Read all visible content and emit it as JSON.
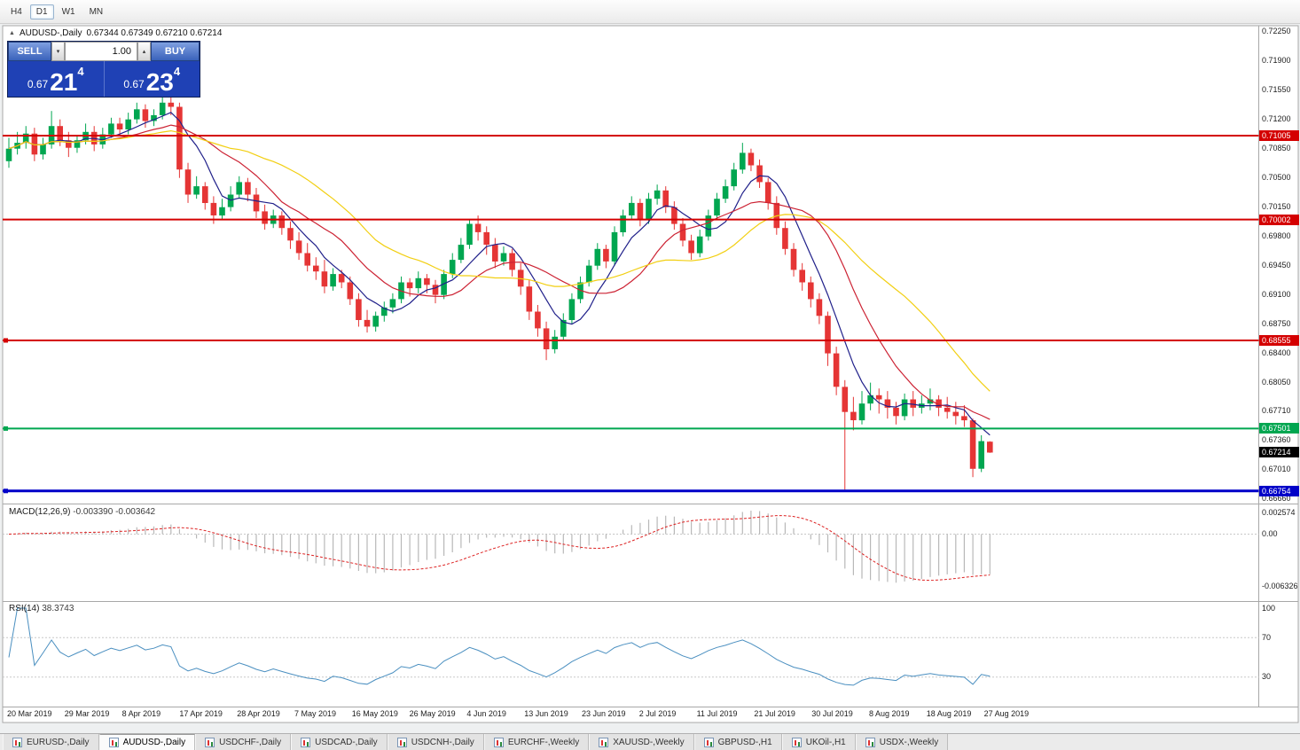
{
  "toolbar": {
    "timeframes": [
      {
        "label": "H4",
        "active": false
      },
      {
        "label": "D1",
        "active": true
      },
      {
        "label": "W1",
        "active": false
      },
      {
        "label": "MN",
        "active": false
      }
    ]
  },
  "legend": {
    "symbol": "AUDUSD-,Daily",
    "ohlc": "0.67344 0.67349 0.67210 0.67214"
  },
  "trade_widget": {
    "sell_button": "SELL",
    "buy_button": "BUY",
    "volume": "1.00",
    "bid": {
      "prefix": "0.67",
      "big": "21",
      "sup": "4"
    },
    "ask": {
      "prefix": "0.67",
      "big": "23",
      "sup": "4"
    }
  },
  "tabs": [
    {
      "label": "EURUSD-,Daily",
      "active": false
    },
    {
      "label": "AUDUSD-,Daily",
      "active": true
    },
    {
      "label": "USDCHF-,Daily",
      "active": false
    },
    {
      "label": "USDCAD-,Daily",
      "active": false
    },
    {
      "label": "USDCNH-,Daily",
      "active": false
    },
    {
      "label": "EURCHF-,Weekly",
      "active": false
    },
    {
      "label": "XAUUSD-,Weekly",
      "active": false
    },
    {
      "label": "GBPUSD-,H1",
      "active": false
    },
    {
      "label": "UKOil-,H1",
      "active": false
    },
    {
      "label": "USDX-,Weekly",
      "active": false
    }
  ],
  "chart_data": {
    "type": "candlestick",
    "symbol": "AUDUSD",
    "period": "Daily",
    "bull_color": "#00a650",
    "bear_color": "#e53535",
    "y_range": [
      0.66625,
      0.7231
    ],
    "y_axis_ticks": [
      "0.72250",
      "0.71900",
      "0.71550",
      "0.71200",
      "0.70850",
      "0.70500",
      "0.70150",
      "0.69800",
      "0.69450",
      "0.69100",
      "0.68750",
      "0.68400",
      "0.68050",
      "0.67710",
      "0.67360",
      "0.67010",
      "0.66660"
    ],
    "x_axis_labels": [
      "20 Mar 2019",
      "29 Mar 2019",
      "8 Apr 2019",
      "17 Apr 2019",
      "28 Apr 2019",
      "7 May 2019",
      "16 May 2019",
      "26 May 2019",
      "4 Jun 2019",
      "13 Jun 2019",
      "23 Jun 2019",
      "2 Jul 2019",
      "11 Jul 2019",
      "21 Jul 2019",
      "30 Jul 2019",
      "8 Aug 2019",
      "18 Aug 2019",
      "27 Aug 2019"
    ],
    "ohlc": [
      [
        0.707,
        0.7098,
        0.7062,
        0.7085
      ],
      [
        0.7085,
        0.7105,
        0.7078,
        0.7092
      ],
      [
        0.7092,
        0.7112,
        0.7085,
        0.7103
      ],
      [
        0.7103,
        0.711,
        0.707,
        0.7078
      ],
      [
        0.7078,
        0.7098,
        0.7072,
        0.709
      ],
      [
        0.709,
        0.713,
        0.7085,
        0.7112
      ],
      [
        0.7112,
        0.712,
        0.7088,
        0.7095
      ],
      [
        0.7095,
        0.7105,
        0.7075,
        0.7086
      ],
      [
        0.7086,
        0.71,
        0.708,
        0.7095
      ],
      [
        0.7095,
        0.7115,
        0.709,
        0.7105
      ],
      [
        0.7105,
        0.7112,
        0.7082,
        0.709
      ],
      [
        0.709,
        0.711,
        0.7085,
        0.7102
      ],
      [
        0.7102,
        0.7122,
        0.7098,
        0.7115
      ],
      [
        0.7115,
        0.7122,
        0.71,
        0.7108
      ],
      [
        0.7108,
        0.7128,
        0.7102,
        0.712
      ],
      [
        0.712,
        0.714,
        0.7115,
        0.7132
      ],
      [
        0.7132,
        0.7138,
        0.711,
        0.7118
      ],
      [
        0.7118,
        0.7132,
        0.7112,
        0.7125
      ],
      [
        0.7125,
        0.7152,
        0.712,
        0.714
      ],
      [
        0.714,
        0.7148,
        0.7125,
        0.7135
      ],
      [
        0.7135,
        0.714,
        0.705,
        0.706
      ],
      [
        0.706,
        0.7068,
        0.702,
        0.703
      ],
      [
        0.703,
        0.7052,
        0.7025,
        0.704
      ],
      [
        0.704,
        0.7045,
        0.7012,
        0.702
      ],
      [
        0.702,
        0.7028,
        0.6995,
        0.7005
      ],
      [
        0.7005,
        0.7025,
        0.7,
        0.7015
      ],
      [
        0.7015,
        0.704,
        0.701,
        0.703
      ],
      [
        0.703,
        0.7052,
        0.7025,
        0.7045
      ],
      [
        0.7045,
        0.705,
        0.7022,
        0.703
      ],
      [
        0.703,
        0.7038,
        0.7002,
        0.701
      ],
      [
        0.701,
        0.7018,
        0.6988,
        0.6995
      ],
      [
        0.6995,
        0.7012,
        0.699,
        0.7005
      ],
      [
        0.7005,
        0.701,
        0.6982,
        0.699
      ],
      [
        0.699,
        0.6998,
        0.6965,
        0.6975
      ],
      [
        0.6975,
        0.6985,
        0.6952,
        0.696
      ],
      [
        0.696,
        0.6972,
        0.6938,
        0.6945
      ],
      [
        0.6945,
        0.6955,
        0.6928,
        0.6938
      ],
      [
        0.6938,
        0.6952,
        0.6912,
        0.692
      ],
      [
        0.692,
        0.6942,
        0.6915,
        0.6935
      ],
      [
        0.6935,
        0.694,
        0.6918,
        0.6925
      ],
      [
        0.6925,
        0.6932,
        0.6898,
        0.6905
      ],
      [
        0.6905,
        0.6912,
        0.6872,
        0.688
      ],
      [
        0.688,
        0.6892,
        0.6865,
        0.6872
      ],
      [
        0.6872,
        0.689,
        0.6866,
        0.6885
      ],
      [
        0.6885,
        0.6902,
        0.6878,
        0.6895
      ],
      [
        0.6895,
        0.6912,
        0.6888,
        0.6905
      ],
      [
        0.6905,
        0.6932,
        0.69,
        0.6925
      ],
      [
        0.6925,
        0.693,
        0.6908,
        0.6918
      ],
      [
        0.6918,
        0.6938,
        0.6912,
        0.693
      ],
      [
        0.693,
        0.6935,
        0.6912,
        0.6922
      ],
      [
        0.6922,
        0.6928,
        0.69,
        0.691
      ],
      [
        0.691,
        0.694,
        0.6905,
        0.6935
      ],
      [
        0.6935,
        0.696,
        0.693,
        0.6952
      ],
      [
        0.6952,
        0.6978,
        0.6948,
        0.697
      ],
      [
        0.697,
        0.7,
        0.6965,
        0.6995
      ],
      [
        0.6995,
        0.7005,
        0.6975,
        0.6985
      ],
      [
        0.6985,
        0.6992,
        0.6958,
        0.697
      ],
      [
        0.697,
        0.6978,
        0.6942,
        0.695
      ],
      [
        0.695,
        0.6968,
        0.6945,
        0.696
      ],
      [
        0.696,
        0.6965,
        0.6932,
        0.694
      ],
      [
        0.694,
        0.6948,
        0.691,
        0.692
      ],
      [
        0.692,
        0.6928,
        0.688,
        0.689
      ],
      [
        0.689,
        0.6898,
        0.686,
        0.687
      ],
      [
        0.687,
        0.6878,
        0.6832,
        0.6845
      ],
      [
        0.6845,
        0.6868,
        0.684,
        0.686
      ],
      [
        0.686,
        0.6888,
        0.6855,
        0.688
      ],
      [
        0.688,
        0.6912,
        0.6875,
        0.6905
      ],
      [
        0.6905,
        0.6932,
        0.69,
        0.6925
      ],
      [
        0.6925,
        0.6952,
        0.692,
        0.6945
      ],
      [
        0.6945,
        0.6972,
        0.694,
        0.6965
      ],
      [
        0.6965,
        0.697,
        0.6942,
        0.695
      ],
      [
        0.695,
        0.6992,
        0.6945,
        0.6985
      ],
      [
        0.6985,
        0.7012,
        0.698,
        0.7005
      ],
      [
        0.7005,
        0.7028,
        0.7,
        0.702
      ],
      [
        0.702,
        0.7025,
        0.6992,
        0.7
      ],
      [
        0.7,
        0.7032,
        0.6995,
        0.7025
      ],
      [
        0.7025,
        0.7042,
        0.7018,
        0.7035
      ],
      [
        0.7035,
        0.704,
        0.7008,
        0.7015
      ],
      [
        0.7015,
        0.7022,
        0.6988,
        0.6995
      ],
      [
        0.6995,
        0.7002,
        0.6968,
        0.6975
      ],
      [
        0.6975,
        0.6982,
        0.6952,
        0.696
      ],
      [
        0.696,
        0.6988,
        0.6955,
        0.698
      ],
      [
        0.698,
        0.7012,
        0.6975,
        0.7005
      ],
      [
        0.7005,
        0.7032,
        0.7,
        0.7025
      ],
      [
        0.7025,
        0.7048,
        0.702,
        0.704
      ],
      [
        0.704,
        0.7068,
        0.7035,
        0.706
      ],
      [
        0.706,
        0.7092,
        0.7055,
        0.708
      ],
      [
        0.708,
        0.7085,
        0.7058,
        0.7065
      ],
      [
        0.7065,
        0.7072,
        0.7038,
        0.7045
      ],
      [
        0.7045,
        0.705,
        0.7012,
        0.702
      ],
      [
        0.702,
        0.7028,
        0.6982,
        0.699
      ],
      [
        0.699,
        0.6998,
        0.6958,
        0.6965
      ],
      [
        0.6965,
        0.6972,
        0.6932,
        0.694
      ],
      [
        0.694,
        0.6948,
        0.6915,
        0.6925
      ],
      [
        0.6925,
        0.6932,
        0.6895,
        0.6905
      ],
      [
        0.6905,
        0.6912,
        0.6875,
        0.6885
      ],
      [
        0.6885,
        0.689,
        0.6825,
        0.684
      ],
      [
        0.684,
        0.6848,
        0.679,
        0.68
      ],
      [
        0.68,
        0.6808,
        0.6677,
        0.677
      ],
      [
        0.677,
        0.6788,
        0.6748,
        0.676
      ],
      [
        0.676,
        0.6795,
        0.6755,
        0.678
      ],
      [
        0.678,
        0.6805,
        0.6772,
        0.679
      ],
      [
        0.679,
        0.6798,
        0.6768,
        0.6785
      ],
      [
        0.6785,
        0.6795,
        0.6762,
        0.6775
      ],
      [
        0.6775,
        0.6782,
        0.6755,
        0.6765
      ],
      [
        0.6765,
        0.6792,
        0.676,
        0.6785
      ],
      [
        0.6785,
        0.6795,
        0.6765,
        0.6775
      ],
      [
        0.6775,
        0.679,
        0.6768,
        0.678
      ],
      [
        0.678,
        0.6798,
        0.6772,
        0.6785
      ],
      [
        0.6785,
        0.679,
        0.6765,
        0.6775
      ],
      [
        0.6775,
        0.6788,
        0.6762,
        0.677
      ],
      [
        0.677,
        0.6782,
        0.6755,
        0.6765
      ],
      [
        0.6765,
        0.6778,
        0.6752,
        0.676
      ],
      [
        0.676,
        0.6762,
        0.6692,
        0.6702
      ],
      [
        0.6702,
        0.6742,
        0.6698,
        0.6735
      ],
      [
        0.67344,
        0.67349,
        0.6721,
        0.67214
      ]
    ],
    "moving_averages": [
      {
        "period": 6,
        "color": "#20208a",
        "name": "fast-ma"
      },
      {
        "period": 13,
        "color": "#cc2233",
        "name": "medium-ma"
      },
      {
        "period": 24,
        "color": "#f2cf12",
        "name": "slow-ma"
      }
    ],
    "hlines": [
      {
        "price": 0.71005,
        "label": "0.71005",
        "color": "#d40000",
        "width": 2,
        "handle": false
      },
      {
        "price": 0.70002,
        "label": "0.70002",
        "color": "#d40000",
        "width": 2,
        "handle": false
      },
      {
        "price": 0.68555,
        "label": "0.68555",
        "color": "#d40000",
        "width": 2,
        "handle": true
      },
      {
        "price": 0.67501,
        "label": "0.67501",
        "color": "#00a650",
        "width": 2,
        "handle": true
      },
      {
        "price": 0.66754,
        "label": "0.66754",
        "color": "#0000c8",
        "width": 3,
        "handle": true
      }
    ],
    "current_price": {
      "value": 0.67214,
      "label": "0.67214"
    },
    "macd": {
      "title": "MACD(12,26,9)",
      "values_text": "-0.003390 -0.003642",
      "fast": 12,
      "slow": 26,
      "signal_period": 9,
      "axis_labels": [
        "0.002574",
        "0.00",
        "-0.006326"
      ],
      "histogram_color": "#b8b8b8",
      "signal_color": "#dd2222"
    },
    "rsi": {
      "title": "RSI(14)",
      "value_text": "38.3743",
      "period": 14,
      "levels": [
        100,
        70,
        30
      ],
      "color": "#4a8fc0"
    }
  }
}
